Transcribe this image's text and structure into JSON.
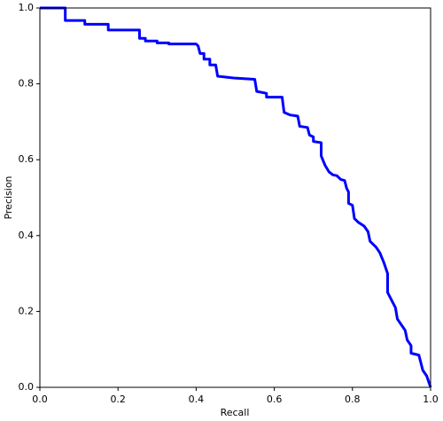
{
  "chart_data": {
    "type": "line",
    "xlabel": "Recall",
    "ylabel": "Precision",
    "x": [
      0,
      0.065,
      0.065,
      0.115,
      0.115,
      0.175,
      0.175,
      0.255,
      0.255,
      0.27,
      0.27,
      0.3,
      0.3,
      0.33,
      0.33,
      0.4,
      0.405,
      0.41,
      0.42,
      0.42,
      0.435,
      0.435,
      0.45,
      0.455,
      0.5,
      0.55,
      0.555,
      0.58,
      0.58,
      0.62,
      0.625,
      0.64,
      0.66,
      0.665,
      0.685,
      0.69,
      0.7,
      0.7,
      0.72,
      0.72,
      0.73,
      0.74,
      0.75,
      0.76,
      0.77,
      0.78,
      0.785,
      0.79,
      0.79,
      0.8,
      0.805,
      0.815,
      0.83,
      0.84,
      0.845,
      0.86,
      0.87,
      0.88,
      0.89,
      0.89,
      0.9,
      0.91,
      0.915,
      0.925,
      0.935,
      0.94,
      0.95,
      0.95,
      0.97,
      0.975,
      0.98,
      0.99,
      1.0
    ],
    "series": [
      {
        "color": "#0000ff",
        "values": [
          1.0,
          1.0,
          0.967,
          0.967,
          0.957,
          0.957,
          0.942,
          0.942,
          0.92,
          0.92,
          0.913,
          0.913,
          0.908,
          0.908,
          0.905,
          0.905,
          0.9,
          0.88,
          0.88,
          0.865,
          0.865,
          0.85,
          0.85,
          0.82,
          0.815,
          0.812,
          0.78,
          0.775,
          0.765,
          0.765,
          0.725,
          0.718,
          0.715,
          0.688,
          0.685,
          0.665,
          0.66,
          0.648,
          0.645,
          0.61,
          0.585,
          0.568,
          0.56,
          0.558,
          0.548,
          0.545,
          0.525,
          0.515,
          0.485,
          0.48,
          0.445,
          0.435,
          0.425,
          0.41,
          0.385,
          0.37,
          0.355,
          0.33,
          0.3,
          0.25,
          0.23,
          0.21,
          0.18,
          0.165,
          0.15,
          0.125,
          0.11,
          0.09,
          0.085,
          0.065,
          0.045,
          0.03,
          0.0
        ]
      }
    ],
    "xlim": [
      0,
      1
    ],
    "ylim": [
      0,
      1
    ],
    "xticks": [
      {
        "value": 0,
        "label": "0.0"
      },
      0.2,
      0.4,
      0.6,
      0.8,
      {
        "value": 1,
        "label": "1.0"
      }
    ],
    "yticks": [
      {
        "value": 0,
        "label": "0.0"
      },
      0.2,
      0.4,
      0.6,
      0.8,
      {
        "value": 1,
        "label": "1.0"
      }
    ],
    "grid": false
  }
}
